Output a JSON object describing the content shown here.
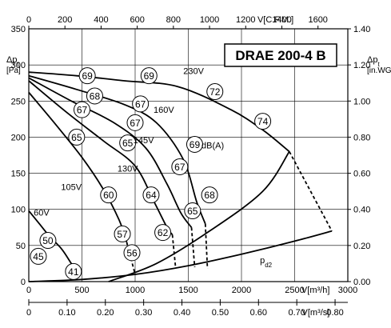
{
  "chart_data": {
    "type": "line",
    "title": "DRAE 200-4 B",
    "axes": {
      "left": {
        "label_top": "Δp",
        "label_sub": "t",
        "unit": "[Pa]",
        "range": [
          0,
          350
        ],
        "ticks": [
          0,
          50,
          100,
          150,
          200,
          250,
          300,
          350
        ]
      },
      "right": {
        "label_top": "Δp",
        "label_sub": "t",
        "unit": "[in.WG]",
        "range": [
          0,
          1.4
        ],
        "ticks": [
          "0.00",
          "0.20",
          "0.40",
          "0.60",
          "0.80",
          "1.00",
          "1.20",
          "1.40"
        ]
      },
      "bottom": {
        "label": "V[m³/h]",
        "range": [
          0,
          3000
        ],
        "ticks": [
          0,
          500,
          1000,
          1500,
          2000,
          2500,
          3000
        ]
      },
      "bottom2": {
        "label": "V[m³/s]",
        "range": [
          0,
          0.8333
        ],
        "ticks": [
          "0",
          "0.10",
          "0.20",
          "0.30",
          "0.40",
          "0.50",
          "0.60",
          "0.70",
          "0.80"
        ]
      },
      "top": {
        "label": "V[C.F.M.]",
        "range": [
          0,
          1765
        ],
        "ticks": [
          0,
          200,
          400,
          600,
          800,
          1000,
          1200,
          1400,
          1600
        ]
      }
    },
    "grid": true,
    "series": [
      {
        "name": "230V",
        "points": [
          [
            0,
            290
          ],
          [
            450,
            285
          ],
          [
            900,
            278
          ],
          [
            1400,
            270
          ],
          [
            1900,
            238
          ],
          [
            2200,
            210
          ],
          [
            2450,
            180
          ]
        ],
        "dashed_to": [
          2850,
          70
        ]
      },
      {
        "name": "160V",
        "points": [
          [
            0,
            285
          ],
          [
            450,
            266
          ],
          [
            900,
            245
          ],
          [
            1200,
            220
          ],
          [
            1450,
            170
          ],
          [
            1580,
            110
          ],
          [
            1660,
            80
          ]
        ],
        "dashed_to": [
          1680,
          18
        ]
      },
      {
        "name": "145V",
        "points": [
          [
            0,
            282
          ],
          [
            400,
            250
          ],
          [
            800,
            220
          ],
          [
            1100,
            185
          ],
          [
            1300,
            135
          ],
          [
            1430,
            95
          ],
          [
            1530,
            75
          ]
        ],
        "dashed_to": [
          1560,
          20
        ]
      },
      {
        "name": "130V",
        "points": [
          [
            0,
            278
          ],
          [
            350,
            235
          ],
          [
            700,
            195
          ],
          [
            1000,
            160
          ],
          [
            1180,
            110
          ],
          [
            1300,
            75
          ],
          [
            1350,
            65
          ]
        ],
        "dashed_to": [
          1380,
          20
        ]
      },
      {
        "name": "105V",
        "points": [
          [
            0,
            262
          ],
          [
            250,
            218
          ],
          [
            500,
            172
          ],
          [
            700,
            128
          ],
          [
            850,
            85
          ],
          [
            920,
            55
          ]
        ],
        "dashed_to": [
          1000,
          10
        ]
      },
      {
        "name": "60V",
        "points": [
          [
            0,
            98
          ],
          [
            100,
            80
          ],
          [
            200,
            62
          ],
          [
            310,
            45
          ],
          [
            400,
            25
          ],
          [
            450,
            15
          ]
        ]
      },
      {
        "name": "p_d2",
        "points": [
          [
            0,
            0
          ],
          [
            500,
            3
          ],
          [
            1000,
            10
          ],
          [
            1500,
            22
          ],
          [
            2000,
            38
          ],
          [
            2500,
            56
          ],
          [
            2850,
            70
          ]
        ]
      },
      {
        "name": "system",
        "points": [
          [
            750,
            0
          ],
          [
            1200,
            25
          ],
          [
            1700,
            70
          ],
          [
            2200,
            125
          ],
          [
            2450,
            180
          ]
        ]
      }
    ],
    "curve_labels": [
      {
        "text": "230V",
        "at": [
          1550,
          292
        ]
      },
      {
        "text": "160V",
        "at": [
          1270,
          238
        ]
      },
      {
        "text": "145V",
        "at": [
          1080,
          196
        ]
      },
      {
        "text": "130V",
        "at": [
          930,
          157
        ]
      },
      {
        "text": "105V",
        "at": [
          400,
          131
        ]
      },
      {
        "text": "60V",
        "at": [
          120,
          96
        ]
      },
      {
        "text": "dB(A)",
        "at": [
          1730,
          189
        ]
      },
      {
        "text": "p",
        "sub": "d2",
        "at": [
          2230,
          30
        ]
      }
    ],
    "sound_levels_dBA": [
      {
        "value": 69,
        "at": [
          550,
          285
        ]
      },
      {
        "value": 69,
        "at": [
          1130,
          285
        ]
      },
      {
        "value": 72,
        "at": [
          1750,
          263
        ]
      },
      {
        "value": 74,
        "at": [
          2200,
          222
        ]
      },
      {
        "value": 68,
        "at": [
          620,
          257
        ]
      },
      {
        "value": 67,
        "at": [
          1050,
          246
        ]
      },
      {
        "value": 67,
        "at": [
          500,
          238
        ]
      },
      {
        "value": 67,
        "at": [
          1000,
          220
        ]
      },
      {
        "value": 69,
        "at": [
          1560,
          190
        ]
      },
      {
        "value": 65,
        "at": [
          450,
          200
        ]
      },
      {
        "value": 65,
        "at": [
          930,
          192
        ]
      },
      {
        "value": 67,
        "at": [
          1420,
          159
        ]
      },
      {
        "value": 60,
        "at": [
          750,
          120
        ]
      },
      {
        "value": 64,
        "at": [
          1150,
          120
        ]
      },
      {
        "value": 68,
        "at": [
          1700,
          120
        ]
      },
      {
        "value": 65,
        "at": [
          1540,
          98
        ]
      },
      {
        "value": 57,
        "at": [
          880,
          66
        ]
      },
      {
        "value": 62,
        "at": [
          1260,
          68
        ]
      },
      {
        "value": 56,
        "at": [
          970,
          40
        ]
      },
      {
        "value": 50,
        "at": [
          180,
          57
        ]
      },
      {
        "value": 45,
        "at": [
          90,
          35
        ]
      },
      {
        "value": 41,
        "at": [
          420,
          14
        ]
      }
    ]
  }
}
